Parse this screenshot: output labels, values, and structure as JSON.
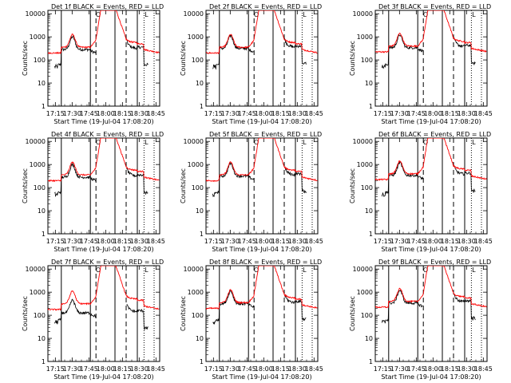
{
  "chart_data": [
    {
      "type": "line",
      "title": "Det 1f BLACK = Events, RED = LLD",
      "profile": "f"
    },
    {
      "type": "line",
      "title": "Det 2f BLACK = Events, RED = LLD",
      "profile": "f"
    },
    {
      "type": "line",
      "title": "Det 3f BLACK = Events, RED = LLD",
      "profile": "f"
    },
    {
      "type": "line",
      "title": "Det 4f BLACK = Events, RED = LLD",
      "profile": "f"
    },
    {
      "type": "line",
      "title": "Det 5f BLACK = Events, RED = LLD",
      "profile": "f"
    },
    {
      "type": "line",
      "title": "Det 6f BLACK = Events, RED = LLD",
      "profile": "f"
    },
    {
      "type": "line",
      "title": "Det 7f BLACK = Events, RED = LLD",
      "profile": "f"
    },
    {
      "type": "line",
      "title": "Det 8f BLACK = Events, RED = LLD",
      "profile": "f"
    },
    {
      "type": "line",
      "title": "Det 9f BLACK = Events, RED = LLD",
      "profile": "f"
    }
  ],
  "shared": {
    "xlabel": "Start Time (19-Jul-04 17:08:20)",
    "ylabel": "Counts/sec",
    "x_tick_labels": [
      "17:15",
      "17:30",
      "17:45",
      "18:00",
      "18:15",
      "18:30",
      "18:45"
    ],
    "x_tick_minutes": [
      6.67,
      21.67,
      36.67,
      51.67,
      66.67,
      81.67,
      96.67
    ],
    "xlim_minutes": [
      0,
      100
    ],
    "y_tick_labels": [
      "1",
      "10",
      "100",
      "1000",
      "10000"
    ],
    "y_tick_values": [
      1,
      10,
      100,
      1000,
      10000
    ],
    "ylim": [
      1,
      14000
    ],
    "y_scale": "log",
    "solid_vlines_minutes": [
      12,
      38,
      60,
      80
    ],
    "dashed_vlines_minutes": [
      43,
      70
    ],
    "dotted_vlines_minutes": [
      86,
      95
    ],
    "markers": {
      "circle": "O",
      "corner": "L"
    },
    "series": [
      {
        "name": "Events",
        "color": "#000000"
      },
      {
        "name": "LLD",
        "color": "#ff0000"
      }
    ]
  }
}
